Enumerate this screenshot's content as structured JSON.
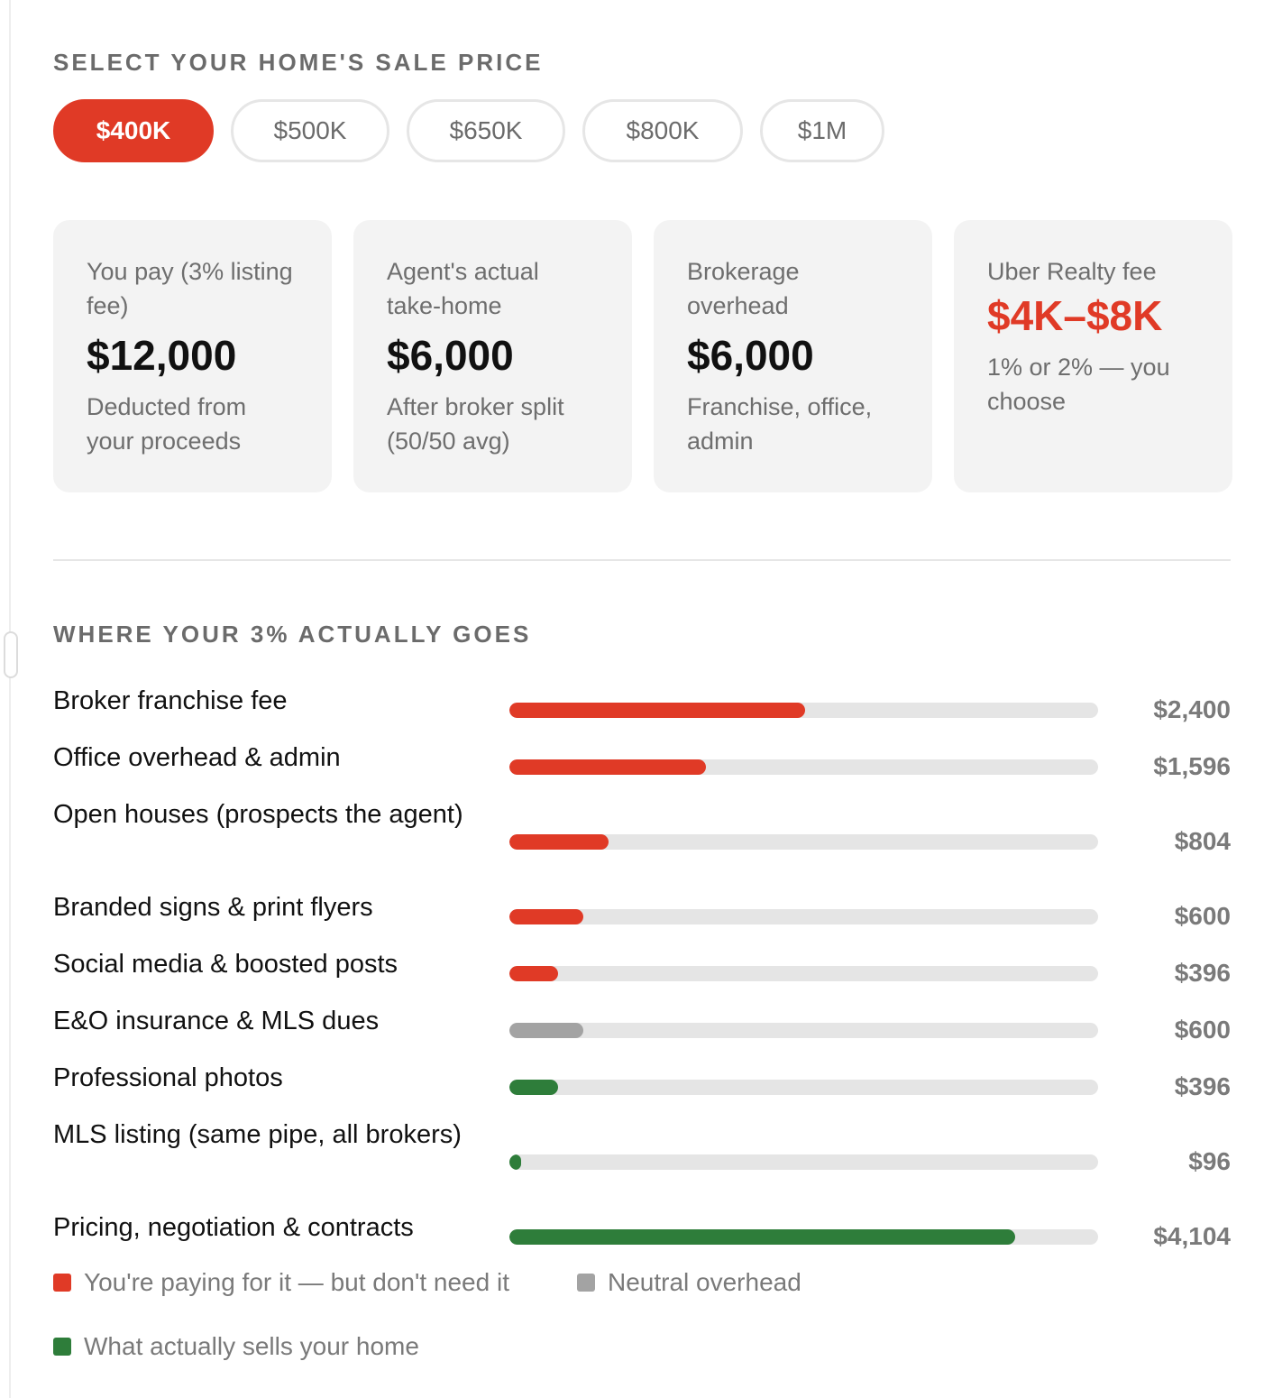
{
  "price_section": {
    "label": "SELECT YOUR HOME'S SALE PRICE",
    "options": [
      {
        "label": "$400K",
        "active": true
      },
      {
        "label": "$500K",
        "active": false
      },
      {
        "label": "$650K",
        "active": false
      },
      {
        "label": "$800K",
        "active": false
      },
      {
        "label": "$1M",
        "active": false
      }
    ]
  },
  "cards": [
    {
      "label": "You pay (3% listing fee)",
      "value": "$12,000",
      "note": "Deducted from your proceeds",
      "accent": false
    },
    {
      "label": "Agent's actual take-home",
      "value": "$6,000",
      "note": "After broker split (50/50 avg)",
      "accent": false
    },
    {
      "label": "Brokerage overhead",
      "value": "$6,000",
      "note": "Franchise, office, admin",
      "accent": false
    },
    {
      "label": "Uber Realty fee",
      "value": "$4K–$8K",
      "note": "1% or 2% — you choose",
      "accent": true
    }
  ],
  "breakdown": {
    "label": "WHERE YOUR 3% ACTUALLY GOES",
    "rows": [
      {
        "label": "Broker franchise fee",
        "value": "$2,400",
        "fraction": 0.502,
        "category": "unneeded"
      },
      {
        "label": "Office overhead & admin",
        "value": "$1,596",
        "fraction": 0.334,
        "category": "unneeded"
      },
      {
        "label": "Open houses (prospects the agent)",
        "value": "$804",
        "fraction": 0.168,
        "category": "unneeded"
      },
      {
        "label": "Branded signs & print flyers",
        "value": "$600",
        "fraction": 0.126,
        "category": "unneeded"
      },
      {
        "label": "Social media & boosted posts",
        "value": "$396",
        "fraction": 0.083,
        "category": "unneeded"
      },
      {
        "label": "E&O insurance & MLS dues",
        "value": "$600",
        "fraction": 0.126,
        "category": "neutral"
      },
      {
        "label": "Professional photos",
        "value": "$396",
        "fraction": 0.083,
        "category": "sells"
      },
      {
        "label": "MLS listing (same pipe, all brokers)",
        "value": "$96",
        "fraction": 0.02,
        "category": "sells"
      },
      {
        "label": "Pricing, negotiation & contracts",
        "value": "$4,104",
        "fraction": 0.859,
        "category": "sells"
      }
    ]
  },
  "legend": [
    {
      "label": "You're paying for it — but don't need it",
      "category": "unneeded"
    },
    {
      "label": "Neutral overhead",
      "category": "neutral"
    },
    {
      "label": "What actually sells your home",
      "category": "sells"
    }
  ],
  "colors": {
    "accent": "#e03a26",
    "unneeded": "#e03a26",
    "neutral": "#a3a3a3",
    "sells": "#2e7d3a"
  }
}
